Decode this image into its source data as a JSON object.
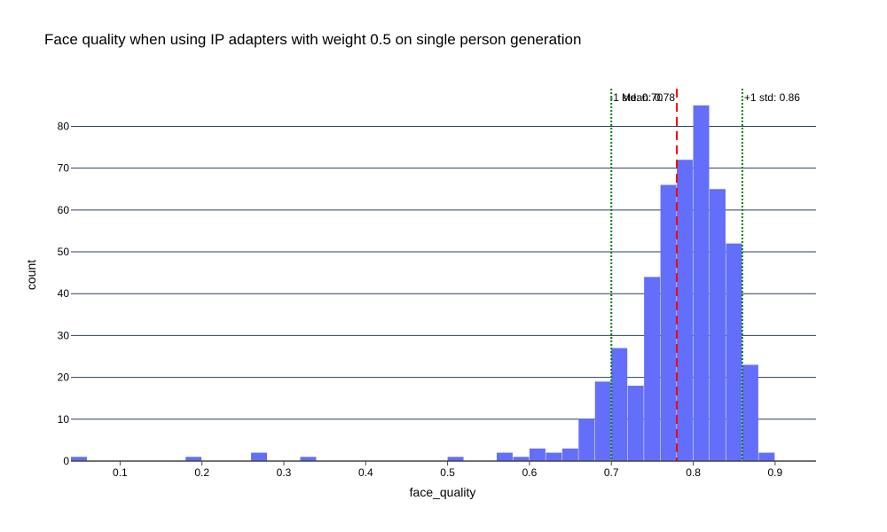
{
  "chart_data": {
    "type": "bar",
    "title": "Face quality when using IP adapters with weight 0.5 on single person generation",
    "xlabel": "face_quality",
    "ylabel": "count",
    "xlim": [
      0.04,
      0.95
    ],
    "ylim": [
      0,
      89
    ],
    "bin_width": 0.02,
    "bin_starts": [
      0.04,
      0.06,
      0.08,
      0.1,
      0.12,
      0.14,
      0.16,
      0.18,
      0.2,
      0.22,
      0.24,
      0.26,
      0.28,
      0.3,
      0.32,
      0.34,
      0.36,
      0.38,
      0.4,
      0.42,
      0.44,
      0.46,
      0.48,
      0.5,
      0.52,
      0.54,
      0.56,
      0.58,
      0.6,
      0.62,
      0.64,
      0.66,
      0.68,
      0.7,
      0.72,
      0.74,
      0.76,
      0.78,
      0.8,
      0.82,
      0.84,
      0.86,
      0.88
    ],
    "counts": [
      1,
      0,
      0,
      0,
      0,
      0,
      0,
      1,
      0,
      0,
      0,
      2,
      0,
      0,
      1,
      0,
      0,
      0,
      0,
      0,
      0,
      0,
      0,
      1,
      0,
      0,
      2,
      1,
      3,
      2,
      3,
      10,
      19,
      27,
      18,
      44,
      66,
      72,
      85,
      65,
      52,
      23,
      2
    ],
    "x_ticks": [
      {
        "value": 0.1,
        "label": "0.1"
      },
      {
        "value": 0.2,
        "label": "0.2"
      },
      {
        "value": 0.3,
        "label": "0.3"
      },
      {
        "value": 0.4,
        "label": "0.4"
      },
      {
        "value": 0.5,
        "label": "0.5"
      },
      {
        "value": 0.6,
        "label": "0.6"
      },
      {
        "value": 0.7,
        "label": "0.7"
      },
      {
        "value": 0.8,
        "label": "0.8"
      },
      {
        "value": 0.9,
        "label": "0.9"
      }
    ],
    "y_ticks": [
      {
        "value": 0,
        "label": "0"
      },
      {
        "value": 10,
        "label": "10"
      },
      {
        "value": 20,
        "label": "20"
      },
      {
        "value": 30,
        "label": "30"
      },
      {
        "value": 40,
        "label": "40"
      },
      {
        "value": 50,
        "label": "50"
      },
      {
        "value": 60,
        "label": "60"
      },
      {
        "value": 70,
        "label": "70"
      },
      {
        "value": 80,
        "label": "80"
      }
    ],
    "vlines": [
      {
        "x": 0.7,
        "label": "-1 std: 0.70",
        "color": "#008000",
        "style": "dotted"
      },
      {
        "x": 0.78,
        "label": "Mean: 0.78",
        "color": "#ff0000",
        "style": "dashed"
      },
      {
        "x": 0.86,
        "label": "+1 std: 0.86",
        "color": "#008000",
        "style": "dotted"
      }
    ],
    "grid": true,
    "bar_color": "#636efa",
    "grid_color": "#2a3f5f"
  }
}
